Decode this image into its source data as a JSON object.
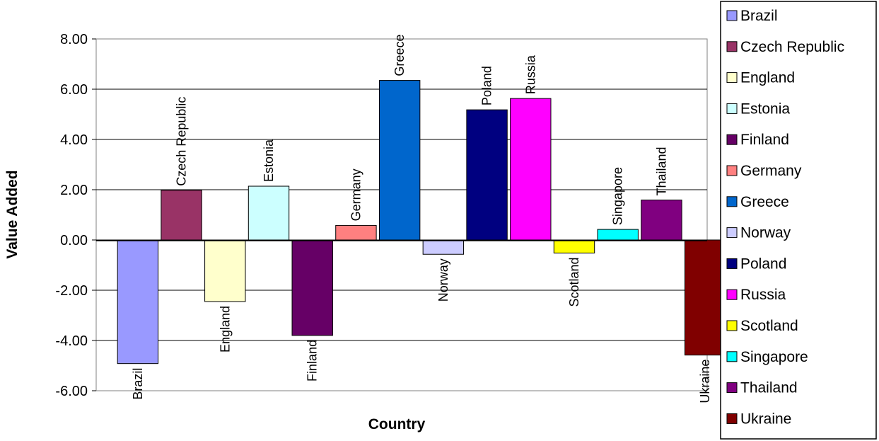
{
  "chart_data": {
    "type": "bar",
    "xlabel": "Country",
    "ylabel": "Value Added",
    "ylim": [
      -6,
      8
    ],
    "y_ticks": [
      "8.00",
      "6.00",
      "4.00",
      "2.00",
      "0.00",
      "-2.00",
      "-4.00",
      "-6.00"
    ],
    "grid": true,
    "legend_position": "right",
    "data_labels": "category names, rotated",
    "categories": [
      "Brazil",
      "Czech Republic",
      "England",
      "Estonia",
      "Finland",
      "Germany",
      "Greece",
      "Norway",
      "Poland",
      "Russia",
      "Scotland",
      "Singapore",
      "Thailand",
      "Ukraine"
    ],
    "values": [
      -4.92,
      1.98,
      -2.45,
      2.14,
      -3.8,
      0.58,
      6.35,
      -0.57,
      5.18,
      5.63,
      -0.52,
      0.42,
      1.59,
      -4.58
    ],
    "colors": [
      "#9999ff",
      "#993366",
      "#ffffcc",
      "#ccffff",
      "#660066",
      "#ff8080",
      "#0066cc",
      "#ccccff",
      "#000080",
      "#ff00ff",
      "#ffff00",
      "#00ffff",
      "#800080",
      "#800000"
    ]
  }
}
